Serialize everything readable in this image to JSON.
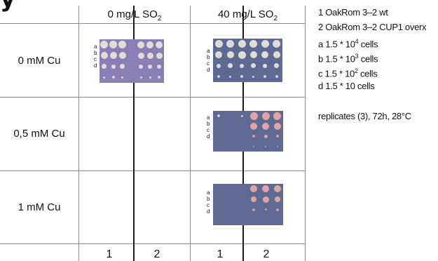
{
  "header": {
    "col1_label": "0 mg/L SO",
    "col1_sub": "2",
    "col2_label": "40 mg/L SO",
    "col2_sub": "2"
  },
  "rows": [
    {
      "label": "0 mM Cu"
    },
    {
      "label": "0,5 mM Cu"
    },
    {
      "label": "1 mM Cu"
    }
  ],
  "footer": {
    "col1_a": "1",
    "col1_b": "2",
    "col2_a": "1",
    "col2_b": "2"
  },
  "plate_labels": [
    "a",
    "b",
    "c",
    "d"
  ],
  "legend": {
    "line1": "1 OakRom 3–2 wt",
    "line2": "2 OakRom 3–2 CUP1 overx",
    "a_pre": "a 1.5 * 10",
    "a_exp": "4",
    "a_post": " cells",
    "b_pre": "b 1.5 * 10",
    "b_exp": "3",
    "b_post": " cells",
    "c_pre": "c 1.5 * 10",
    "c_exp": "2",
    "c_post": " cells",
    "d_text": "d 1.5 * 10 cells",
    "note": "replicates (3), 72h, 28°C"
  },
  "colors": {
    "plate_purple": "#8a7fb5",
    "plate_blue": "#5e6a93",
    "colony_white": "#e6e2d8",
    "colony_pink": "#e8a6a6"
  }
}
